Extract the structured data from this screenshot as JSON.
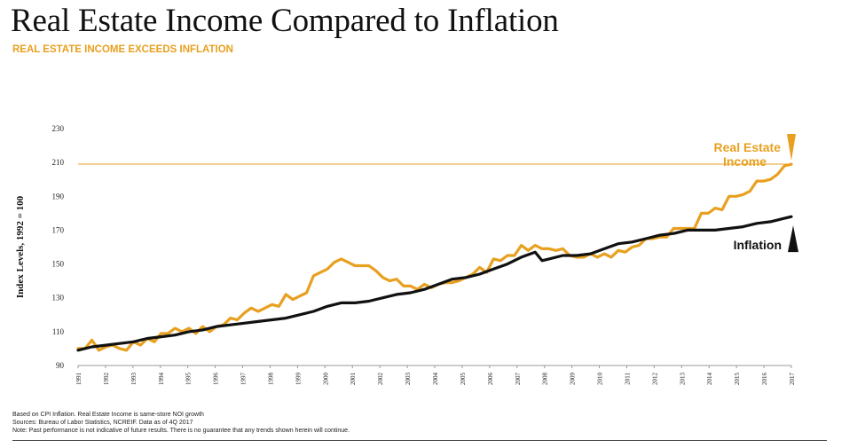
{
  "title": "Real Estate Income Compared to Inflation",
  "subtitle": "REAL ESTATE INCOME EXCEEDS INFLATION",
  "colors": {
    "income": "#e8a020",
    "inflation": "#111111",
    "reference_line": "#e8a020"
  },
  "chart_data": {
    "type": "line",
    "ylabel": "Index Levels, 1992 = 100",
    "xlabel": "",
    "ylim": [
      90,
      230
    ],
    "xlim": [
      1992.0,
      2017.75
    ],
    "yticks": [
      90,
      110,
      130,
      150,
      170,
      190,
      210,
      230
    ],
    "xtick_labels": [
      "1991",
      "1992",
      "1993",
      "1994",
      "1995",
      "1996",
      "1997",
      "1998",
      "1999",
      "2000",
      "2001",
      "2002",
      "2003",
      "2004",
      "2005",
      "2006",
      "2007",
      "2008",
      "2009",
      "2010",
      "2011",
      "2012",
      "2013",
      "2014",
      "2015",
      "2016",
      "2017"
    ],
    "reference_line": {
      "y": 209
    },
    "annotations": [
      {
        "text": "Real Estate Income",
        "series": "income",
        "arrow": "down"
      },
      {
        "text": "Inflation",
        "series": "inflation",
        "arrow": "up"
      }
    ],
    "series": [
      {
        "key": "income",
        "name": "Real Estate Income",
        "points": [
          [
            1992.0,
            100
          ],
          [
            1992.25,
            100
          ],
          [
            1992.5,
            105
          ],
          [
            1992.75,
            99
          ],
          [
            1993.0,
            101
          ],
          [
            1993.25,
            102
          ],
          [
            1993.5,
            100
          ],
          [
            1993.75,
            99
          ],
          [
            1994.0,
            104
          ],
          [
            1994.25,
            102
          ],
          [
            1994.5,
            106
          ],
          [
            1994.75,
            104
          ],
          [
            1995.0,
            109
          ],
          [
            1995.25,
            109
          ],
          [
            1995.5,
            112
          ],
          [
            1995.75,
            110
          ],
          [
            1996.0,
            112
          ],
          [
            1996.25,
            109
          ],
          [
            1996.5,
            113
          ],
          [
            1996.75,
            110
          ],
          [
            1997.0,
            113
          ],
          [
            1997.25,
            114
          ],
          [
            1997.5,
            118
          ],
          [
            1997.75,
            117
          ],
          [
            1998.0,
            121
          ],
          [
            1998.25,
            124
          ],
          [
            1998.5,
            122
          ],
          [
            1998.75,
            124
          ],
          [
            1999.0,
            126
          ],
          [
            1999.25,
            125
          ],
          [
            1999.5,
            132
          ],
          [
            1999.75,
            129
          ],
          [
            2000.0,
            131
          ],
          [
            2000.25,
            133
          ],
          [
            2000.5,
            143
          ],
          [
            2000.75,
            145
          ],
          [
            2001.0,
            147
          ],
          [
            2001.25,
            151
          ],
          [
            2001.5,
            153
          ],
          [
            2001.75,
            151
          ],
          [
            2002.0,
            149
          ],
          [
            2002.25,
            149
          ],
          [
            2002.5,
            149
          ],
          [
            2002.75,
            146
          ],
          [
            2003.0,
            142
          ],
          [
            2003.25,
            140
          ],
          [
            2003.5,
            141
          ],
          [
            2003.75,
            137
          ],
          [
            2004.0,
            137
          ],
          [
            2004.25,
            135
          ],
          [
            2004.5,
            138
          ],
          [
            2004.75,
            136
          ],
          [
            2005.0,
            138
          ],
          [
            2005.25,
            139
          ],
          [
            2005.5,
            139
          ],
          [
            2005.75,
            140
          ],
          [
            2006.0,
            142
          ],
          [
            2006.25,
            144
          ],
          [
            2006.5,
            148
          ],
          [
            2006.75,
            145
          ],
          [
            2007.0,
            153
          ],
          [
            2007.25,
            152
          ],
          [
            2007.5,
            155
          ],
          [
            2007.75,
            155
          ],
          [
            2008.0,
            161
          ],
          [
            2008.25,
            158
          ],
          [
            2008.5,
            161
          ],
          [
            2008.75,
            159
          ],
          [
            2009.0,
            159
          ],
          [
            2009.25,
            158
          ],
          [
            2009.5,
            159
          ],
          [
            2009.75,
            155
          ],
          [
            2010.0,
            154
          ],
          [
            2010.25,
            154
          ],
          [
            2010.5,
            156
          ],
          [
            2010.75,
            154
          ],
          [
            2011.0,
            156
          ],
          [
            2011.25,
            154
          ],
          [
            2011.5,
            158
          ],
          [
            2011.75,
            157
          ],
          [
            2012.0,
            160
          ],
          [
            2012.25,
            161
          ],
          [
            2012.5,
            165
          ],
          [
            2012.75,
            165
          ],
          [
            2013.0,
            166
          ],
          [
            2013.25,
            166
          ],
          [
            2013.5,
            171
          ],
          [
            2013.75,
            171
          ],
          [
            2014.0,
            171
          ],
          [
            2014.25,
            171
          ],
          [
            2014.5,
            180
          ],
          [
            2014.75,
            180
          ],
          [
            2015.0,
            183
          ],
          [
            2015.25,
            182
          ],
          [
            2015.5,
            190
          ],
          [
            2015.75,
            190
          ],
          [
            2016.0,
            191
          ],
          [
            2016.25,
            193
          ],
          [
            2016.5,
            199
          ],
          [
            2016.75,
            199
          ],
          [
            2017.0,
            200
          ],
          [
            2017.25,
            203
          ],
          [
            2017.5,
            208
          ],
          [
            2017.75,
            209
          ]
        ]
      },
      {
        "key": "inflation",
        "name": "Inflation",
        "points": [
          [
            1992.0,
            99
          ],
          [
            1992.5,
            101
          ],
          [
            1993.0,
            102
          ],
          [
            1993.5,
            103
          ],
          [
            1994.0,
            104
          ],
          [
            1994.5,
            106
          ],
          [
            1995.0,
            107
          ],
          [
            1995.5,
            108
          ],
          [
            1996.0,
            110
          ],
          [
            1996.5,
            111
          ],
          [
            1997.0,
            113
          ],
          [
            1997.5,
            114
          ],
          [
            1998.0,
            115
          ],
          [
            1998.5,
            116
          ],
          [
            1999.0,
            117
          ],
          [
            1999.5,
            118
          ],
          [
            2000.0,
            120
          ],
          [
            2000.5,
            122
          ],
          [
            2001.0,
            125
          ],
          [
            2001.5,
            127
          ],
          [
            2002.0,
            127
          ],
          [
            2002.5,
            128
          ],
          [
            2003.0,
            130
          ],
          [
            2003.5,
            132
          ],
          [
            2004.0,
            133
          ],
          [
            2004.5,
            135
          ],
          [
            2005.0,
            138
          ],
          [
            2005.5,
            141
          ],
          [
            2006.0,
            142
          ],
          [
            2006.5,
            144
          ],
          [
            2007.0,
            147
          ],
          [
            2007.5,
            150
          ],
          [
            2008.0,
            154
          ],
          [
            2008.5,
            157
          ],
          [
            2008.75,
            152
          ],
          [
            2009.0,
            153
          ],
          [
            2009.5,
            155
          ],
          [
            2010.0,
            155
          ],
          [
            2010.5,
            156
          ],
          [
            2011.0,
            159
          ],
          [
            2011.5,
            162
          ],
          [
            2012.0,
            163
          ],
          [
            2012.5,
            165
          ],
          [
            2013.0,
            167
          ],
          [
            2013.5,
            168
          ],
          [
            2014.0,
            170
          ],
          [
            2014.5,
            170
          ],
          [
            2015.0,
            170
          ],
          [
            2015.5,
            171
          ],
          [
            2016.0,
            172
          ],
          [
            2016.5,
            174
          ],
          [
            2017.0,
            175
          ],
          [
            2017.5,
            177
          ],
          [
            2017.75,
            178
          ]
        ]
      }
    ]
  },
  "footnotes": [
    "Based on CPI Inflation. Real Estate Income is same-store NOI growth",
    "Sources: Bureau of Labor Statistics, NCREIF. Data as of 4Q 2017",
    "Note: Past performance is not indicative of future results. There is no guarantee that any trends shown herein will continue."
  ]
}
